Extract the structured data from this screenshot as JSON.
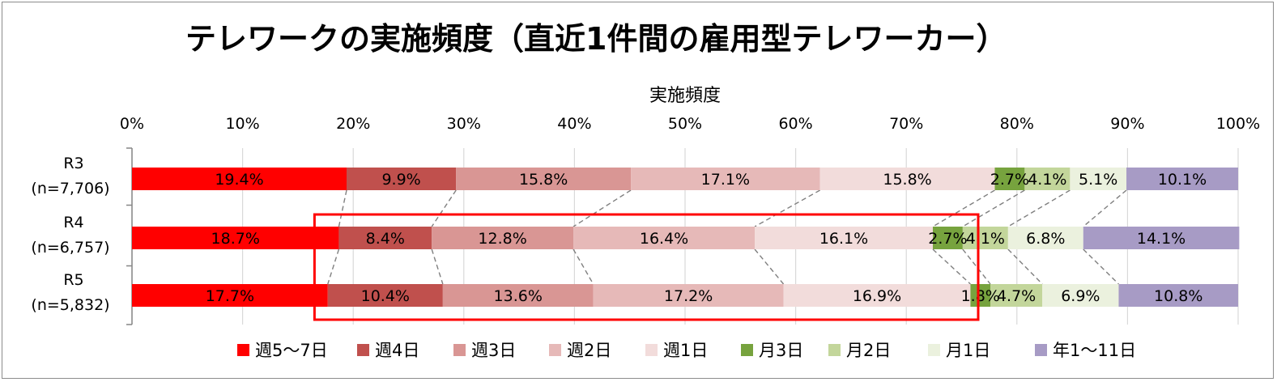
{
  "chart_data": {
    "type": "bar",
    "orientation": "horizontal",
    "stacked": true,
    "percent_stacked": true,
    "title": "テレワークの実施頻度（直近1件間の雇用型テレワーカー）",
    "xlabel": "実施頻度",
    "xlim": [
      0,
      100
    ],
    "x_ticks": [
      "0%",
      "10%",
      "20%",
      "30%",
      "40%",
      "50%",
      "60%",
      "70%",
      "80%",
      "90%",
      "100%"
    ],
    "rows": [
      {
        "label": "R3",
        "n": "(n=7,706)"
      },
      {
        "label": "R4",
        "n": "(n=6,757)"
      },
      {
        "label": "R5",
        "n": "(n=5,832)"
      }
    ],
    "series": [
      {
        "name": "週5～7日",
        "color": "#ff0000",
        "values": [
          19.4,
          18.7,
          17.7
        ],
        "labels": [
          "19.4%",
          "18.7%",
          "17.7%"
        ]
      },
      {
        "name": "週4日",
        "color": "#c0504d",
        "values": [
          9.9,
          8.4,
          10.4
        ],
        "labels": [
          "9.9%",
          "8.4%",
          "10.4%"
        ]
      },
      {
        "name": "週3日",
        "color": "#d99694",
        "values": [
          15.8,
          12.8,
          13.6
        ],
        "labels": [
          "15.8%",
          "12.8%",
          "13.6%"
        ]
      },
      {
        "name": "週2日",
        "color": "#e6b9b8",
        "values": [
          17.1,
          16.4,
          17.2
        ],
        "labels": [
          "17.1%",
          "16.4%",
          "17.2%"
        ]
      },
      {
        "name": "週1日",
        "color": "#f2dcdb",
        "values": [
          15.8,
          16.1,
          16.9
        ],
        "labels": [
          "15.8%",
          "16.1%",
          "16.9%"
        ]
      },
      {
        "name": "月3日",
        "color": "#77a33e",
        "values": [
          2.7,
          2.7,
          1.8
        ],
        "labels": [
          "2.7%",
          "2.7%",
          "1.8%"
        ]
      },
      {
        "name": "月2日",
        "color": "#c3d69b",
        "values": [
          4.1,
          4.1,
          4.7
        ],
        "labels": [
          "4.1%",
          "4.1%",
          "4.7%"
        ]
      },
      {
        "name": "月1日",
        "color": "#ebf1de",
        "values": [
          5.1,
          6.8,
          6.9
        ],
        "labels": [
          "5.1%",
          "6.8%",
          "6.9%"
        ]
      },
      {
        "name": "年1～11日",
        "color": "#a79bc5",
        "values": [
          10.1,
          14.1,
          10.8
        ],
        "labels": [
          "10.1%",
          "14.1%",
          "10.8%"
        ]
      }
    ],
    "connector_lines": true,
    "highlight_box": {
      "color": "#ff0000",
      "rows": [
        "R4",
        "R5"
      ],
      "x_range": [
        16.5,
        76.5
      ]
    },
    "legend_position": "bottom",
    "grid": true
  }
}
